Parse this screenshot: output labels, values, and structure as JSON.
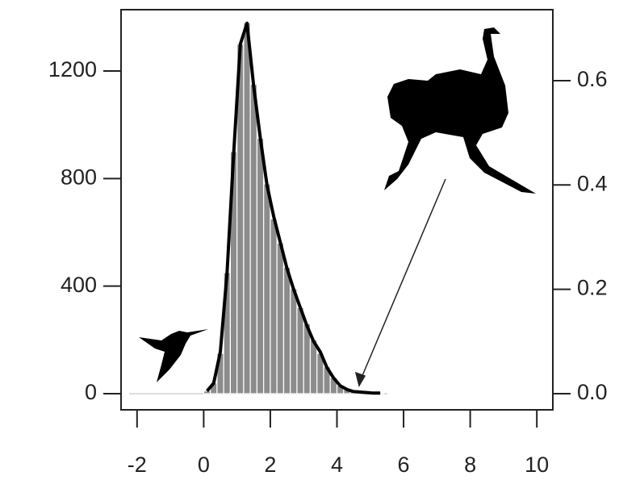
{
  "chart_data": {
    "type": "histogram",
    "bins": [
      0,
      0.2,
      0.4,
      0.6,
      0.8,
      1.0,
      1.2,
      1.4,
      1.6,
      1.8,
      2.0,
      2.2,
      2.4,
      2.6,
      2.8,
      3.0,
      3.2,
      3.4,
      3.6,
      3.8,
      4.0,
      4.2,
      4.4,
      4.6,
      4.8,
      5.0,
      5.2,
      5.4
    ],
    "values": [
      10,
      40,
      150,
      450,
      900,
      1300,
      1380,
      1150,
      950,
      780,
      650,
      560,
      470,
      390,
      320,
      260,
      200,
      150,
      100,
      60,
      30,
      15,
      8,
      5,
      3,
      2,
      1
    ],
    "color": "#8c8c8c",
    "density": {
      "axis": "y2",
      "color": "#000000",
      "x": [
        0.1,
        0.3,
        0.5,
        0.7,
        0.9,
        1.1,
        1.3,
        1.5,
        1.7,
        1.9,
        2.1,
        2.3,
        2.5,
        2.7,
        2.9,
        3.1,
        3.3,
        3.5,
        3.7,
        3.9,
        4.1,
        4.3,
        4.5,
        4.7,
        4.9,
        5.1,
        5.3
      ],
      "values": [
        0.005,
        0.02,
        0.08,
        0.23,
        0.46,
        0.67,
        0.71,
        0.59,
        0.49,
        0.4,
        0.34,
        0.29,
        0.24,
        0.2,
        0.165,
        0.13,
        0.1,
        0.08,
        0.05,
        0.03,
        0.015,
        0.008,
        0.004,
        0.003,
        0.002,
        0.001,
        0.001
      ]
    },
    "xlim": [
      -2.48,
      10.48
    ],
    "xticks": [
      -2,
      0,
      2,
      4,
      6,
      8,
      10
    ],
    "ylim": [
      -60,
      1428
    ],
    "yticks": [
      0,
      400,
      800,
      1200
    ],
    "y2lim": [
      -0.031,
      0.736
    ],
    "y2ticks": [
      {
        "value": 0,
        "label": "0.0"
      },
      {
        "value": 0.2,
        "label": "0.2"
      },
      {
        "value": 0.4,
        "label": "0.4"
      },
      {
        "value": 0.6,
        "label": "0.6"
      }
    ]
  }
}
